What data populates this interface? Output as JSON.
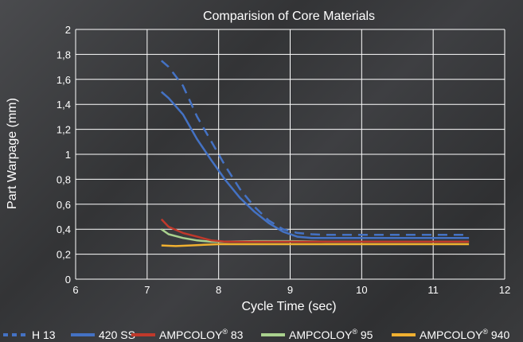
{
  "chart_data": {
    "type": "line",
    "title": "Comparision of Core Materials",
    "xlabel": "Cycle Time (sec)",
    "ylabel": "Part Warpage (mm)",
    "xlim": [
      6,
      12
    ],
    "ylim": [
      0,
      2
    ],
    "x_ticks": [
      "6",
      "7",
      "8",
      "9",
      "10",
      "11",
      "12"
    ],
    "y_ticks": [
      "0",
      "0,2",
      "0,4",
      "0,6",
      "0,8",
      "1",
      "1,2",
      "1,4",
      "1,6",
      "1,8",
      "2"
    ],
    "grid": true,
    "legend_position": "bottom",
    "series": [
      {
        "name": "H 13",
        "color": "#4472c4",
        "dash": true,
        "points": [
          [
            7.2,
            1.75
          ],
          [
            7.3,
            1.7
          ],
          [
            7.5,
            1.55
          ],
          [
            7.7,
            1.3
          ],
          [
            7.9,
            1.1
          ],
          [
            8.1,
            0.9
          ],
          [
            8.3,
            0.72
          ],
          [
            8.5,
            0.58
          ],
          [
            8.7,
            0.47
          ],
          [
            8.9,
            0.4
          ],
          [
            9.1,
            0.37
          ],
          [
            9.3,
            0.36
          ],
          [
            9.5,
            0.355
          ],
          [
            10,
            0.355
          ],
          [
            10.5,
            0.355
          ],
          [
            11,
            0.355
          ],
          [
            11.5,
            0.355
          ]
        ]
      },
      {
        "name": "420 SS",
        "color": "#4472c4",
        "dash": false,
        "points": [
          [
            7.2,
            1.5
          ],
          [
            7.3,
            1.45
          ],
          [
            7.5,
            1.32
          ],
          [
            7.7,
            1.12
          ],
          [
            7.9,
            0.95
          ],
          [
            8.1,
            0.79
          ],
          [
            8.3,
            0.65
          ],
          [
            8.5,
            0.54
          ],
          [
            8.7,
            0.45
          ],
          [
            8.9,
            0.38
          ],
          [
            9.1,
            0.34
          ],
          [
            9.3,
            0.33
          ],
          [
            9.5,
            0.33
          ],
          [
            10,
            0.33
          ],
          [
            10.5,
            0.33
          ],
          [
            11,
            0.33
          ],
          [
            11.5,
            0.33
          ]
        ]
      },
      {
        "name": "AMPCOLOY® 83",
        "color": "#c0392b",
        "dash": false,
        "points": [
          [
            7.2,
            0.48
          ],
          [
            7.3,
            0.42
          ],
          [
            7.5,
            0.37
          ],
          [
            7.7,
            0.34
          ],
          [
            7.9,
            0.31
          ],
          [
            8.1,
            0.3
          ],
          [
            8.5,
            0.3
          ],
          [
            9,
            0.3
          ],
          [
            9.5,
            0.3
          ],
          [
            10,
            0.3
          ],
          [
            10.5,
            0.3
          ],
          [
            11,
            0.3
          ],
          [
            11.5,
            0.3
          ]
        ]
      },
      {
        "name": "AMPCOLOY® 95",
        "color": "#a9d18e",
        "dash": false,
        "points": [
          [
            7.2,
            0.4
          ],
          [
            7.3,
            0.36
          ],
          [
            7.5,
            0.33
          ],
          [
            7.7,
            0.31
          ],
          [
            7.9,
            0.3
          ],
          [
            8.1,
            0.3
          ],
          [
            8.5,
            0.305
          ],
          [
            9,
            0.305
          ],
          [
            9.5,
            0.3
          ],
          [
            10,
            0.3
          ],
          [
            10.5,
            0.3
          ],
          [
            11,
            0.3
          ],
          [
            11.5,
            0.3
          ]
        ]
      },
      {
        "name": "AMPCOLOY® 940",
        "color": "#f0b030",
        "dash": false,
        "points": [
          [
            7.2,
            0.27
          ],
          [
            7.4,
            0.265
          ],
          [
            7.6,
            0.27
          ],
          [
            7.8,
            0.275
          ],
          [
            8,
            0.28
          ],
          [
            8.5,
            0.28
          ],
          [
            9,
            0.28
          ],
          [
            9.5,
            0.28
          ],
          [
            10,
            0.28
          ],
          [
            10.5,
            0.28
          ],
          [
            11,
            0.28
          ],
          [
            11.5,
            0.28
          ]
        ]
      }
    ]
  }
}
